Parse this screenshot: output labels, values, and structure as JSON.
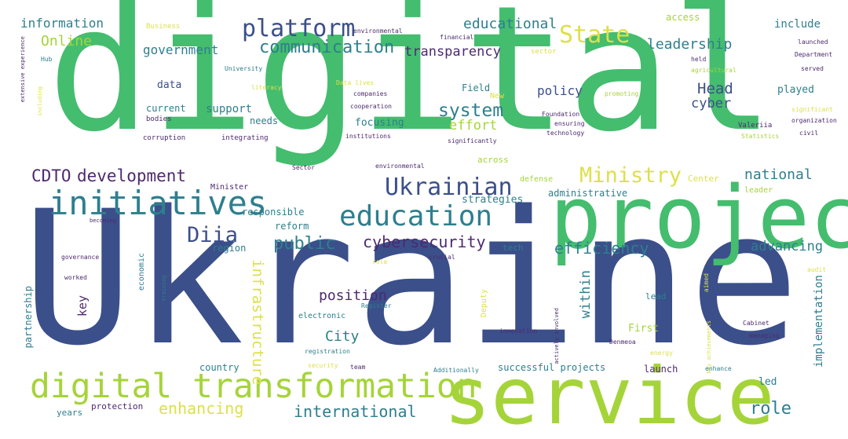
{
  "palette": {
    "indigo": "#3b4f8a",
    "teal": "#2e7f8e",
    "green": "#44bd6e",
    "lime": "#a5d43a",
    "yellow": "#dde04a",
    "purple": "#4d2a6e",
    "background": "#ffffff"
  },
  "words": {
    "digital": "digital",
    "ukraine": "Ukraine",
    "project": "project",
    "service": "service",
    "digital_transformation": "digital transformation",
    "initiatives": "initiatives",
    "education": "education",
    "ukrainian": "Ukrainian",
    "platform": "platform",
    "state": "State",
    "ministry": "Ministry",
    "communication": "communication",
    "transparency": "transparency",
    "development": "development",
    "cdto": "CDTO",
    "diia": "Diia",
    "public": "public",
    "cybersecurity": "cybersecurity",
    "efficiency": "efficiency",
    "system": "system",
    "effort": "effort",
    "educational": "educational",
    "leadership": "leadership",
    "government": "government",
    "information": "information",
    "online": "Online",
    "head": "Head",
    "cyber": "cyber",
    "policy": "policy",
    "national": "national",
    "advancing": "advancing",
    "enhancing": "enhancing",
    "international": "international",
    "role": "role",
    "position": "position",
    "city": "City",
    "infrastructure": "infrastructure",
    "within": "within",
    "implementation": "implementation",
    "include": "include",
    "access": "access",
    "played": "played",
    "support": "support",
    "focusing": "focusing",
    "data": "data",
    "current": "current",
    "needs": "needs",
    "strategies": "strategies",
    "responsible": "responsible",
    "reform": "reform",
    "region": "region",
    "key": "key",
    "partnership": "partnership",
    "led": "led",
    "first": "First",
    "lead": "lead",
    "launch": "launch",
    "successful_projects": "successful projects",
    "country": "country",
    "years": "years",
    "protection": "protection",
    "economic": "economic",
    "electronic": "electronic",
    "deputy": "Deputy",
    "administrative": "administrative",
    "across": "across",
    "defense": "defense",
    "center": "Center",
    "leader": "leader",
    "minister": "Minister",
    "field": "Field",
    "new": "New",
    "tech": "tech",
    "business": "Business",
    "environmental": "environmental",
    "financial": "financial",
    "sector": "sector",
    "university": "University",
    "literacy": "literacy",
    "companies": "companies",
    "cooperation": "cooperation",
    "institutions": "institutions",
    "foundation": "Foundation",
    "ensuring": "ensuring",
    "technology": "technology",
    "significantly": "significantly",
    "corruption": "corruption",
    "integrating": "integrating",
    "bodies": "bodies",
    "hub": "Hub",
    "held": "held",
    "agricultural": "agricultural",
    "launched": "launched",
    "department": "Department",
    "served": "served",
    "promoting": "promoting",
    "significant": "significant",
    "organization": "organization",
    "valeriia": "Valeriia",
    "civil": "civil",
    "statistics": "Statistics",
    "extensive_experience": "extensive experience",
    "including": "including",
    "data_lives": "Data lives",
    "sector_small": "Sector",
    "environmental_small": "environmental",
    "becoming": "becoming",
    "governance": "governance",
    "worked": "worked",
    "training": "training",
    "crucial": "crucial",
    "aimed": "aimed",
    "audit": "audit",
    "register": "Register",
    "innovation": "innovation",
    "actively_involved": "actively involved",
    "key_achievements": "key achievements",
    "cabinet": "Cabinet",
    "managing": "managing",
    "energy": "energy",
    "denmeoa": "Denmeoa",
    "enhance": "enhance",
    "additionally": "Additionally",
    "registration": "registration",
    "security": "security",
    "team": "team",
    "role_small": "role"
  }
}
